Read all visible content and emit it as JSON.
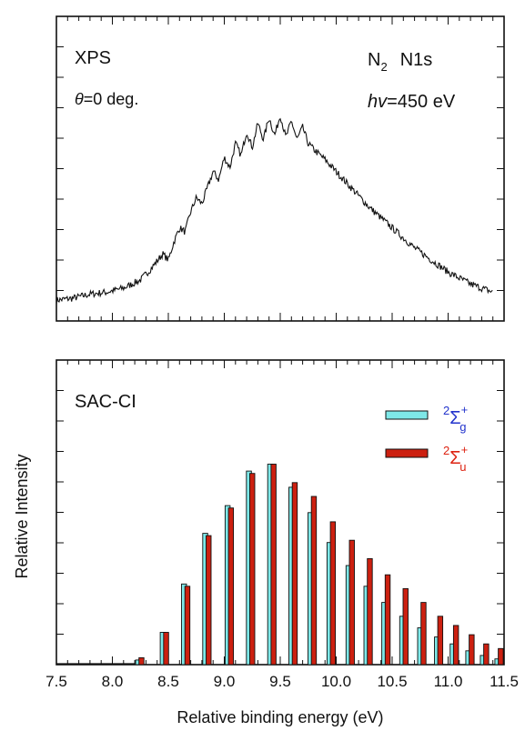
{
  "chart_data": [
    {
      "type": "line",
      "panel_label": "XPS",
      "angle_symbol": "θ",
      "angle_text": "=0 deg.",
      "molecule": "N",
      "molecule_sub": "2",
      "orbital": "N1s",
      "photon_symbol": "hv",
      "photon_text": "=450 eV",
      "xlim": [
        7.5,
        11.4
      ],
      "ylim": [
        0,
        1.0
      ],
      "series": [
        {
          "x": [
            7.5,
            7.65,
            7.8,
            7.95,
            8.1,
            8.25,
            8.35,
            8.45,
            8.5,
            8.55,
            8.6,
            8.65,
            8.7,
            8.75,
            8.8,
            8.85,
            8.9,
            8.95,
            9.0,
            9.05,
            9.1,
            9.15,
            9.2,
            9.25,
            9.3,
            9.35,
            9.4,
            9.45,
            9.5,
            9.55,
            9.6,
            9.65,
            9.7,
            9.75,
            9.8,
            9.9,
            10.0,
            10.1,
            10.2,
            10.3,
            10.4,
            10.5,
            10.6,
            10.7,
            10.8,
            10.9,
            11.0,
            11.1,
            11.2,
            11.3,
            11.4
          ],
          "y": [
            0.04,
            0.05,
            0.07,
            0.08,
            0.1,
            0.14,
            0.2,
            0.27,
            0.24,
            0.33,
            0.4,
            0.38,
            0.48,
            0.55,
            0.52,
            0.6,
            0.68,
            0.64,
            0.75,
            0.7,
            0.82,
            0.76,
            0.88,
            0.8,
            0.92,
            0.84,
            0.95,
            0.86,
            0.96,
            0.85,
            0.93,
            0.84,
            0.9,
            0.82,
            0.79,
            0.74,
            0.68,
            0.62,
            0.56,
            0.5,
            0.45,
            0.4,
            0.35,
            0.3,
            0.26,
            0.22,
            0.18,
            0.15,
            0.12,
            0.1,
            0.08
          ]
        }
      ]
    },
    {
      "type": "bar",
      "panel_label": "SAC-CI",
      "ylabel": "Relative Intensity",
      "xlabel": "Relative binding energy (eV)",
      "xlim": [
        7.5,
        11.5
      ],
      "ylim": [
        0,
        1.0
      ],
      "x_ticks": [
        "7.5",
        "8.0",
        "8.5",
        "9.0",
        "9.5",
        "10.0",
        "10.5",
        "11.0",
        "11.5"
      ],
      "series": [
        {
          "name_sup_left": "2",
          "name_main": "Σ",
          "name_sub": "g",
          "name_sup_right": "+",
          "color": "#7ee8e8",
          "label_color": "#2233cc",
          "x": [
            8.23,
            8.45,
            8.64,
            8.83,
            9.03,
            9.22,
            9.41,
            9.6,
            9.77,
            9.94,
            10.11,
            10.27,
            10.43,
            10.59,
            10.75,
            10.9,
            11.04,
            11.18,
            11.31,
            11.44
          ],
          "values": [
            0.02,
            0.14,
            0.35,
            0.57,
            0.69,
            0.84,
            0.87,
            0.77,
            0.66,
            0.53,
            0.43,
            0.34,
            0.27,
            0.21,
            0.16,
            0.12,
            0.09,
            0.06,
            0.04,
            0.025
          ]
        },
        {
          "name_sup_left": "2",
          "name_main": "Σ",
          "name_sub": "u",
          "name_sup_right": "+",
          "color": "#cc2010",
          "label_color": "#dd2211",
          "x": [
            8.26,
            8.48,
            8.67,
            8.86,
            9.06,
            9.25,
            9.44,
            9.63,
            9.8,
            9.97,
            10.14,
            10.3,
            10.46,
            10.62,
            10.78,
            10.93,
            11.07,
            11.21,
            11.34,
            11.47
          ],
          "values": [
            0.03,
            0.14,
            0.34,
            0.56,
            0.68,
            0.83,
            0.87,
            0.79,
            0.73,
            0.62,
            0.54,
            0.46,
            0.39,
            0.33,
            0.27,
            0.21,
            0.17,
            0.13,
            0.09,
            0.07
          ]
        }
      ]
    }
  ]
}
